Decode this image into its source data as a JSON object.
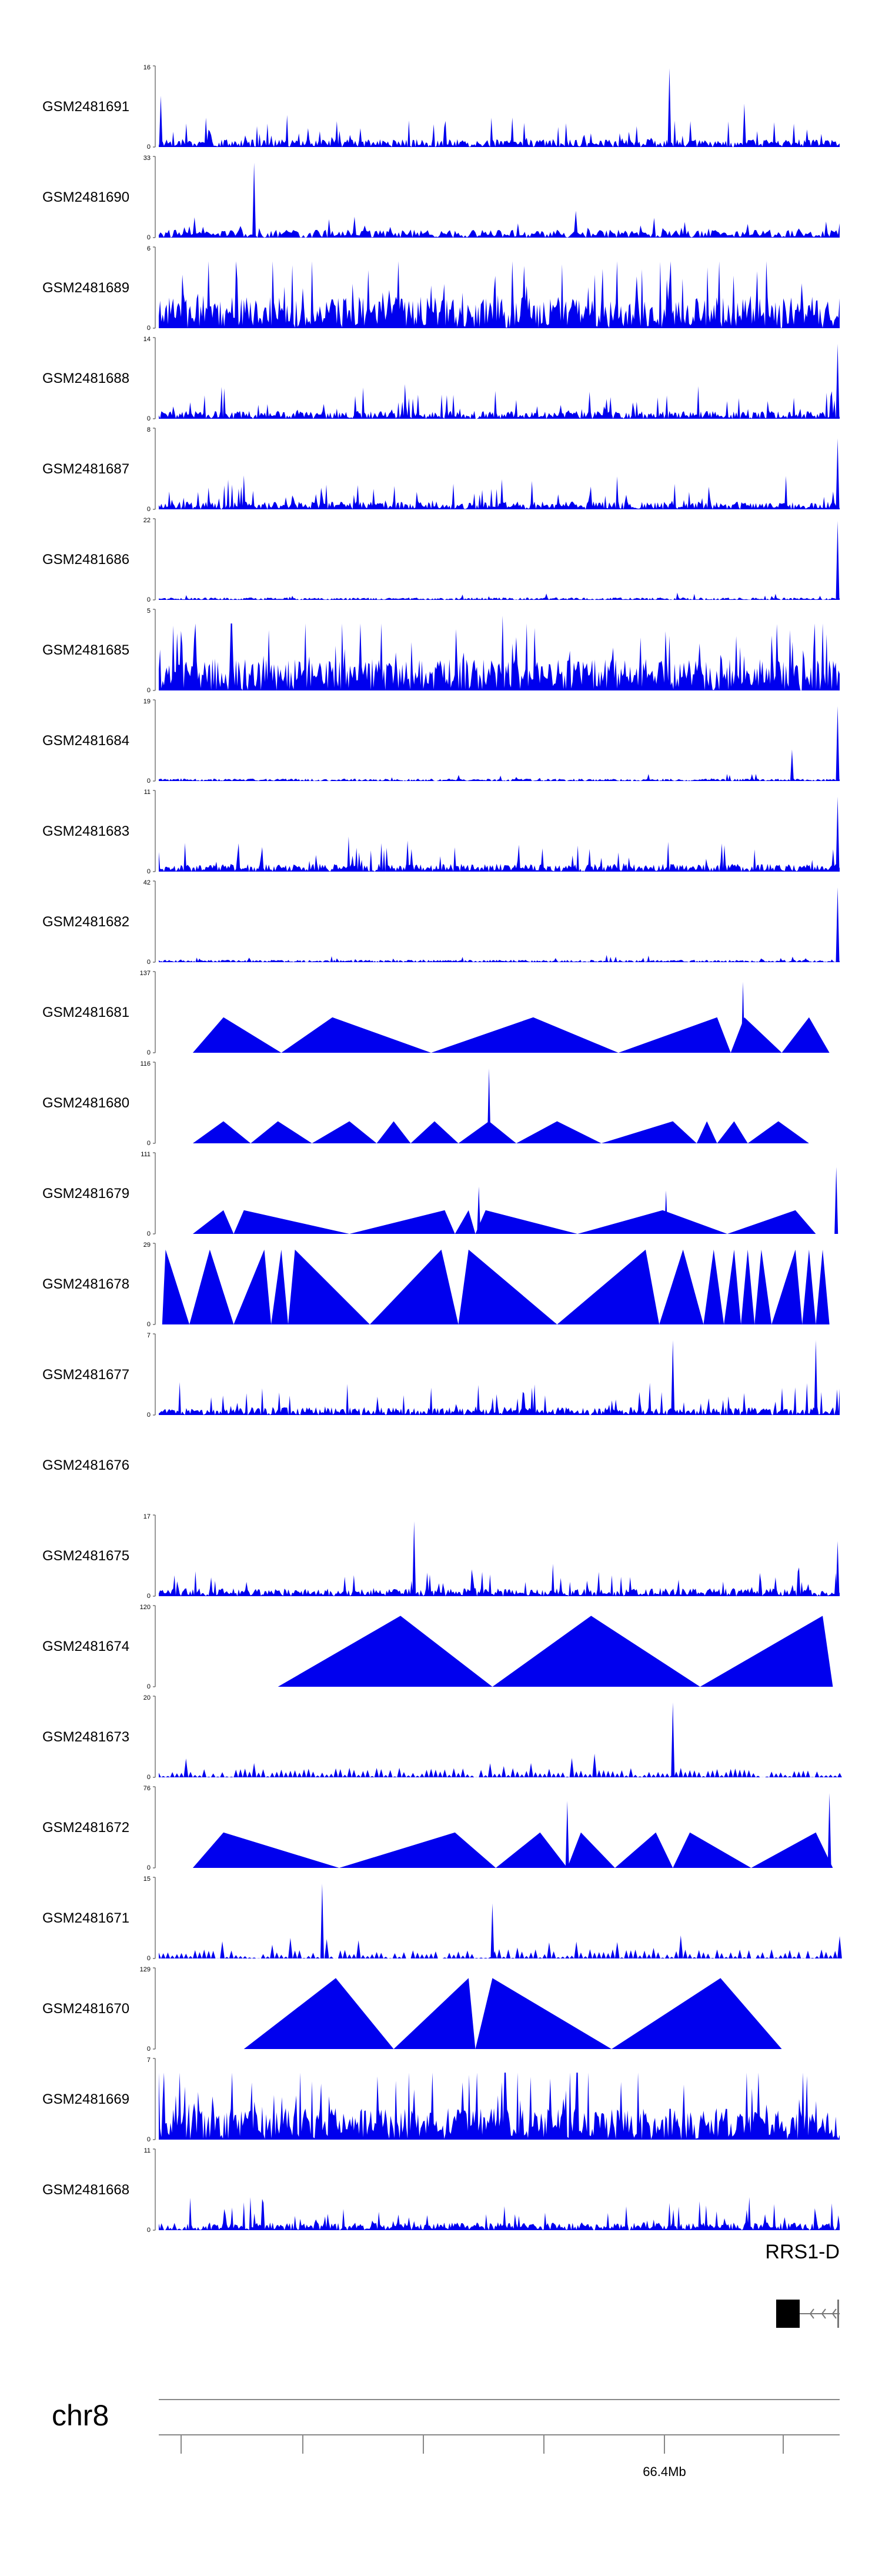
{
  "chart_data": {
    "type": "area",
    "title": "",
    "chromosome": "chr8",
    "coordinate_label": "66.4Mb",
    "gene": {
      "name": "RRS1-D"
    },
    "colors": {
      "signal": "#0000ee",
      "axis": "#555555",
      "gene": "#000000"
    },
    "tracks": [
      {
        "name": "GSM2481691",
        "ymax": "16",
        "ymin": "0",
        "style": "spiky",
        "peaks": [
          [
            0.003,
            0.65
          ],
          [
            0.75,
            1.0
          ],
          [
            0.86,
            0.55
          ]
        ]
      },
      {
        "name": "GSM2481690",
        "ymax": "33",
        "ymin": "0",
        "style": "triangles",
        "peaks": [
          [
            0.14,
            0.95
          ]
        ]
      },
      {
        "name": "GSM2481689",
        "ymax": "6",
        "ymin": "0",
        "style": "dense",
        "peaks": []
      },
      {
        "name": "GSM2481688",
        "ymax": "14",
        "ymin": "0",
        "style": "spiky",
        "peaks": [
          [
            0.997,
            0.95
          ]
        ]
      },
      {
        "name": "GSM2481687",
        "ymax": "8",
        "ymin": "0",
        "style": "spiky",
        "peaks": [
          [
            0.997,
            0.9
          ]
        ]
      },
      {
        "name": "GSM2481686",
        "ymax": "22",
        "ymin": "0",
        "style": "sparse",
        "peaks": [
          [
            0.997,
            1.0
          ]
        ]
      },
      {
        "name": "GSM2481685",
        "ymax": "5",
        "ymin": "0",
        "style": "dense",
        "peaks": [
          [
            0.505,
            0.95
          ]
        ]
      },
      {
        "name": "GSM2481684",
        "ymax": "19",
        "ymin": "0",
        "style": "sparse",
        "peaks": [
          [
            0.93,
            0.4
          ],
          [
            0.997,
            0.95
          ]
        ]
      },
      {
        "name": "GSM2481683",
        "ymax": "11",
        "ymin": "0",
        "style": "spiky",
        "peaks": [
          [
            0.997,
            0.95
          ]
        ]
      },
      {
        "name": "GSM2481682",
        "ymax": "42",
        "ymin": "0",
        "style": "sparse",
        "peaks": [
          [
            0.997,
            0.95
          ]
        ]
      },
      {
        "name": "GSM2481681",
        "ymax": "137",
        "ymin": "0",
        "style": "segments",
        "peaks": [
          [
            0.858,
            0.9
          ]
        ],
        "segments": [
          [
            0.05,
            0.095,
            0.18,
            0.45
          ],
          [
            0.18,
            0.255,
            0.4,
            0.45
          ],
          [
            0.4,
            0.55,
            0.675,
            0.45
          ],
          [
            0.675,
            0.82,
            0.84,
            0.45
          ],
          [
            0.84,
            0.86,
            0.915,
            0.45
          ],
          [
            0.915,
            0.955,
            0.985,
            0.45
          ]
        ]
      },
      {
        "name": "GSM2481680",
        "ymax": "116",
        "ymin": "0",
        "style": "segments",
        "peaks": [
          [
            0.485,
            0.95
          ]
        ],
        "segments": [
          [
            0.05,
            0.095,
            0.135,
            0.28
          ],
          [
            0.135,
            0.175,
            0.225,
            0.28
          ],
          [
            0.225,
            0.28,
            0.32,
            0.28
          ],
          [
            0.32,
            0.345,
            0.37,
            0.28
          ],
          [
            0.37,
            0.405,
            0.44,
            0.28
          ],
          [
            0.44,
            0.485,
            0.525,
            0.28
          ],
          [
            0.525,
            0.585,
            0.65,
            0.28
          ],
          [
            0.65,
            0.755,
            0.79,
            0.28
          ],
          [
            0.79,
            0.805,
            0.82,
            0.28
          ],
          [
            0.82,
            0.845,
            0.865,
            0.28
          ],
          [
            0.865,
            0.91,
            0.955,
            0.28
          ]
        ]
      },
      {
        "name": "GSM2481679",
        "ymax": "111",
        "ymin": "0",
        "style": "segments",
        "peaks": [
          [
            0.47,
            0.6
          ],
          [
            0.745,
            0.55
          ],
          [
            0.995,
            0.85
          ]
        ],
        "segments": [
          [
            0.05,
            0.095,
            0.11,
            0.3
          ],
          [
            0.11,
            0.125,
            0.28,
            0.3
          ],
          [
            0.28,
            0.42,
            0.435,
            0.3
          ],
          [
            0.435,
            0.455,
            0.465,
            0.3
          ],
          [
            0.465,
            0.48,
            0.615,
            0.3
          ],
          [
            0.615,
            0.74,
            0.835,
            0.3
          ],
          [
            0.835,
            0.935,
            0.965,
            0.3
          ]
        ]
      },
      {
        "name": "GSM2481678",
        "ymax": "29",
        "ymin": "0",
        "style": "segments",
        "peaks": [],
        "segments": [
          [
            0.005,
            0.01,
            0.045,
            0.95
          ],
          [
            0.045,
            0.075,
            0.11,
            0.95
          ],
          [
            0.11,
            0.155,
            0.165,
            0.95
          ],
          [
            0.165,
            0.18,
            0.19,
            0.95
          ],
          [
            0.19,
            0.2,
            0.31,
            0.95
          ],
          [
            0.31,
            0.415,
            0.44,
            0.95
          ],
          [
            0.44,
            0.455,
            0.585,
            0.95
          ],
          [
            0.585,
            0.715,
            0.735,
            0.95
          ],
          [
            0.735,
            0.77,
            0.8,
            0.95
          ],
          [
            0.8,
            0.815,
            0.83,
            0.95
          ],
          [
            0.83,
            0.845,
            0.855,
            0.95
          ],
          [
            0.855,
            0.865,
            0.875,
            0.95
          ],
          [
            0.875,
            0.885,
            0.9,
            0.95
          ],
          [
            0.9,
            0.935,
            0.945,
            0.95
          ],
          [
            0.945,
            0.955,
            0.965,
            0.95
          ],
          [
            0.965,
            0.975,
            0.985,
            0.95
          ]
        ]
      },
      {
        "name": "GSM2481677",
        "ymax": "7",
        "ymin": "0",
        "style": "spiky",
        "peaks": [
          [
            0.755,
            0.95
          ],
          [
            0.965,
            0.95
          ]
        ]
      },
      {
        "name": "GSM2481676",
        "ymax": "",
        "ymin": "",
        "style": "empty",
        "peaks": []
      },
      {
        "name": "GSM2481675",
        "ymax": "17",
        "ymin": "0",
        "style": "spiky",
        "peaks": [
          [
            0.375,
            0.95
          ],
          [
            0.997,
            0.7
          ]
        ]
      },
      {
        "name": "GSM2481674",
        "ymax": "120",
        "ymin": "0",
        "style": "segments",
        "peaks": [],
        "segments": [
          [
            0.175,
            0.355,
            0.49,
            0.9
          ],
          [
            0.49,
            0.635,
            0.795,
            0.9
          ],
          [
            0.795,
            0.975,
            0.99,
            0.9
          ]
        ]
      },
      {
        "name": "GSM2481673",
        "ymax": "20",
        "ymin": "0",
        "style": "sawtooth",
        "peaks": [
          [
            0.755,
            0.95
          ]
        ]
      },
      {
        "name": "GSM2481672",
        "ymax": "76",
        "ymin": "0",
        "style": "segments",
        "peaks": [
          [
            0.6,
            0.85
          ],
          [
            0.985,
            0.95
          ]
        ],
        "segments": [
          [
            0.05,
            0.095,
            0.265,
            0.45
          ],
          [
            0.265,
            0.435,
            0.495,
            0.45
          ],
          [
            0.495,
            0.56,
            0.6,
            0.45
          ],
          [
            0.6,
            0.62,
            0.67,
            0.45
          ],
          [
            0.67,
            0.73,
            0.755,
            0.45
          ],
          [
            0.755,
            0.78,
            0.87,
            0.45
          ],
          [
            0.87,
            0.965,
            0.99,
            0.45
          ]
        ]
      },
      {
        "name": "GSM2481671",
        "ymax": "15",
        "ymin": "0",
        "style": "sawtooth",
        "peaks": [
          [
            0.24,
            0.95
          ],
          [
            0.49,
            0.7
          ]
        ]
      },
      {
        "name": "GSM2481670",
        "ymax": "129",
        "ymin": "0",
        "style": "segments",
        "peaks": [],
        "segments": [
          [
            0.125,
            0.26,
            0.345,
            0.9
          ],
          [
            0.345,
            0.455,
            0.465,
            0.9
          ],
          [
            0.465,
            0.49,
            0.665,
            0.9
          ],
          [
            0.665,
            0.825,
            0.915,
            0.9
          ]
        ]
      },
      {
        "name": "GSM2481669",
        "ymax": "7",
        "ymin": "0",
        "style": "dense",
        "peaks": []
      },
      {
        "name": "GSM2481668",
        "ymax": "11",
        "ymin": "0",
        "style": "spiky",
        "peaks": []
      }
    ]
  }
}
